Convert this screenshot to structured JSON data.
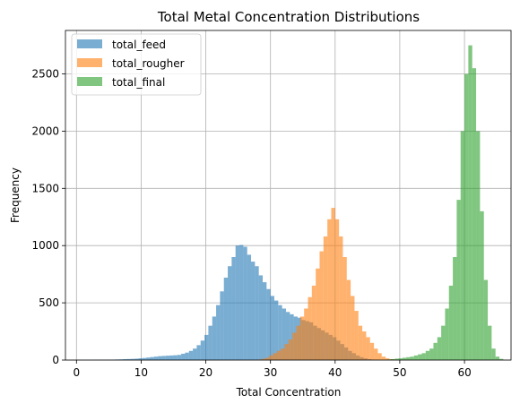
{
  "chart_data": {
    "type": "histogram",
    "title": "Total Metal Concentration Distributions",
    "xlabel": "Total Concentration",
    "ylabel": "Frequency",
    "xlim": [
      -1.7,
      67.2
    ],
    "ylim": [
      0,
      2880
    ],
    "xticks": [
      0,
      10,
      20,
      30,
      40,
      50,
      60
    ],
    "yticks": [
      0,
      500,
      1000,
      1500,
      2000,
      2500
    ],
    "grid": true,
    "legend_position": "top-left",
    "series": [
      {
        "name": "total_feed",
        "color": "#1f77b4",
        "alpha": 0.6,
        "bins_start": 0.0,
        "bin_width": 0.6,
        "counts": [
          2,
          1,
          1,
          1,
          2,
          2,
          3,
          3,
          3,
          4,
          5,
          6,
          8,
          9,
          10,
          12,
          15,
          18,
          22,
          26,
          30,
          34,
          36,
          38,
          40,
          42,
          45,
          55,
          65,
          80,
          100,
          130,
          170,
          220,
          300,
          380,
          480,
          600,
          720,
          820,
          900,
          1000,
          1005,
          990,
          920,
          860,
          820,
          740,
          680,
          620,
          560,
          520,
          480,
          450,
          420,
          400,
          380,
          370,
          350,
          340,
          330,
          300,
          280,
          260,
          240,
          220,
          200,
          170,
          140,
          110,
          80,
          60,
          40,
          25,
          15,
          8,
          4,
          2,
          1,
          1
        ]
      },
      {
        "name": "total_rougher",
        "color": "#ff7f0e",
        "alpha": 0.6,
        "bins_start": 28.0,
        "bin_width": 0.6,
        "counts": [
          5,
          10,
          20,
          40,
          60,
          80,
          100,
          140,
          180,
          240,
          300,
          380,
          450,
          550,
          650,
          800,
          950,
          1080,
          1230,
          1330,
          1230,
          1080,
          900,
          700,
          560,
          430,
          300,
          250,
          200,
          150,
          100,
          60,
          30,
          15,
          8,
          4
        ]
      },
      {
        "name": "total_final",
        "color": "#2ca02c",
        "alpha": 0.6,
        "bins_start": 48.0,
        "bin_width": 0.6,
        "counts": [
          5,
          8,
          12,
          15,
          20,
          25,
          30,
          40,
          50,
          60,
          80,
          100,
          150,
          200,
          300,
          450,
          650,
          900,
          1400,
          2000,
          2500,
          2750,
          2550,
          2000,
          1300,
          700,
          300,
          100,
          30,
          10
        ]
      }
    ]
  }
}
